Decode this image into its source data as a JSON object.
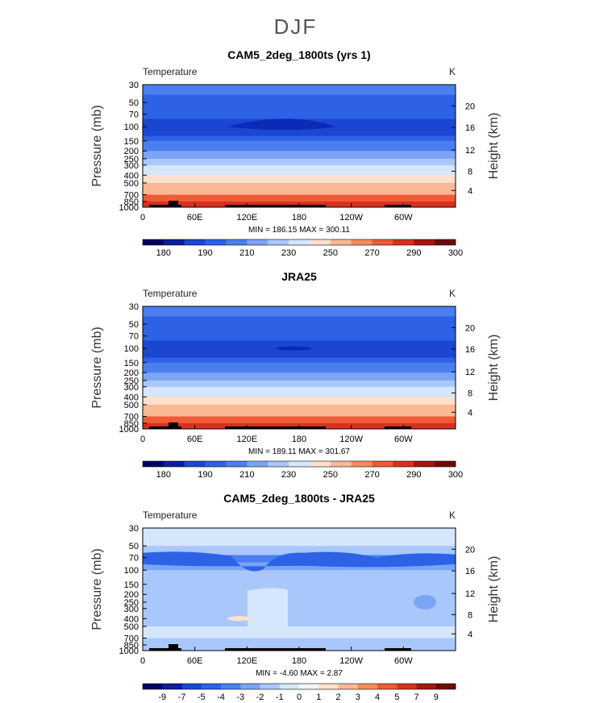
{
  "page_title": "DJF",
  "chart_data": [
    {
      "type": "heatmap",
      "title": "CAM5_2deg_1800ts (yrs 1)",
      "variable_label": "Temperature",
      "units_label": "K",
      "ylabel_left": "Pressure  (mb)",
      "ylabel_right": "Height  (km)",
      "y_ticks_left": [
        "30",
        "50",
        "70",
        "100",
        "150",
        "200",
        "250",
        "300",
        "400",
        "500",
        "700",
        "850",
        "1000"
      ],
      "y_ticks_right": [
        "20",
        "16",
        "12",
        "8",
        "4"
      ],
      "x_ticks": [
        "0",
        "60E",
        "120E",
        "180",
        "120W",
        "60W"
      ],
      "stats_text": "MIN =  186.15   MAX =  300.11",
      "colorbar_labels": [
        "180",
        "190",
        "210",
        "230",
        "250",
        "270",
        "290",
        "300"
      ],
      "layers": [
        {
          "level": "30-40",
          "value": 215
        },
        {
          "level": "40-60",
          "value": 208
        },
        {
          "level": "60-80",
          "value": 200
        },
        {
          "level": "80-130",
          "value": 198
        },
        {
          "level": "130-150",
          "value": 205
        },
        {
          "level": "150-200",
          "value": 215
        },
        {
          "level": "200-250",
          "value": 225
        },
        {
          "level": "250-300",
          "value": 235
        },
        {
          "level": "300-400",
          "value": 245
        },
        {
          "level": "400-500",
          "value": 257
        },
        {
          "level": "500-700",
          "value": 268
        },
        {
          "level": "700-850",
          "value": 280
        },
        {
          "level": "850-1000",
          "value": 293
        }
      ],
      "min": 186.15,
      "max": 300.11
    },
    {
      "type": "heatmap",
      "title": "JRA25",
      "variable_label": "Temperature",
      "units_label": "K",
      "ylabel_left": "Pressure  (mb)",
      "ylabel_right": "Height  (km)",
      "y_ticks_left": [
        "30",
        "50",
        "70",
        "100",
        "150",
        "200",
        "250",
        "300",
        "400",
        "500",
        "700",
        "850",
        "1000"
      ],
      "y_ticks_right": [
        "20",
        "16",
        "12",
        "8",
        "4"
      ],
      "x_ticks": [
        "0",
        "60E",
        "120E",
        "180",
        "120W",
        "60W"
      ],
      "stats_text": "MIN =  189.11   MAX =  301.67",
      "colorbar_labels": [
        "180",
        "190",
        "210",
        "230",
        "250",
        "270",
        "290",
        "300"
      ],
      "layers": [
        {
          "level": "30-40",
          "value": 215
        },
        {
          "level": "40-60",
          "value": 208
        },
        {
          "level": "60-80",
          "value": 200
        },
        {
          "level": "80-130",
          "value": 198
        },
        {
          "level": "130-150",
          "value": 205
        },
        {
          "level": "150-200",
          "value": 215
        },
        {
          "level": "200-250",
          "value": 225
        },
        {
          "level": "250-300",
          "value": 235
        },
        {
          "level": "300-400",
          "value": 245
        },
        {
          "level": "400-500",
          "value": 257
        },
        {
          "level": "500-700",
          "value": 268
        },
        {
          "level": "700-850",
          "value": 280
        },
        {
          "level": "850-1000",
          "value": 293
        }
      ],
      "min": 189.11,
      "max": 301.67
    },
    {
      "type": "heatmap",
      "title": "CAM5_2deg_1800ts - JRA25",
      "variable_label": "Temperature",
      "units_label": "K",
      "ylabel_left": "Pressure  (mb)",
      "ylabel_right": "Height  (km)",
      "y_ticks_left": [
        "30",
        "50",
        "70",
        "100",
        "150",
        "200",
        "250",
        "300",
        "400",
        "500",
        "700",
        "850",
        "1000"
      ],
      "y_ticks_right": [
        "20",
        "16",
        "12",
        "8",
        "4"
      ],
      "x_ticks": [
        "0",
        "60E",
        "120E",
        "180",
        "120W",
        "60W"
      ],
      "stats_text": "MIN =  -4.60   MAX =   2.87",
      "colorbar_labels": [
        "-9",
        "-7",
        "-5",
        "-4",
        "-3",
        "-2",
        "-1",
        "0",
        "1",
        "2",
        "3",
        "4",
        "5",
        "7",
        "9"
      ],
      "layers": [
        {
          "level": "30-50",
          "value": -0.5
        },
        {
          "level": "50-65",
          "value": -1.5
        },
        {
          "level": "65-80",
          "value": -3.5
        },
        {
          "level": "80-100",
          "value": -2.5
        },
        {
          "level": "100-200",
          "value": -1.5
        },
        {
          "level": "200-500",
          "value": -1.5
        },
        {
          "level": "500-700",
          "value": -0.5
        },
        {
          "level": "700-1000",
          "value": -1.5
        }
      ],
      "min": -4.6,
      "max": 2.87
    }
  ],
  "colors": {
    "temp_levels": [
      "#000066",
      "#0a1ea0",
      "#1a46d2",
      "#2d62e6",
      "#4b7ff0",
      "#7aa5f5",
      "#a9c7fa",
      "#d5e6fd",
      "#fde1cc",
      "#fbb894",
      "#f78b5f",
      "#f05a35",
      "#d8301f",
      "#a61610",
      "#700a08"
    ],
    "diff_levels": [
      "#000066",
      "#0a1ea0",
      "#1a46d2",
      "#2d62e6",
      "#4b7ff0",
      "#7aa5f5",
      "#a9c7fa",
      "#d5e6fd",
      "#f5f5f5",
      "#fde1cc",
      "#fbb894",
      "#f78b5f",
      "#f05a35",
      "#d8301f",
      "#a61610",
      "#700a08"
    ],
    "topography": "#000000"
  }
}
